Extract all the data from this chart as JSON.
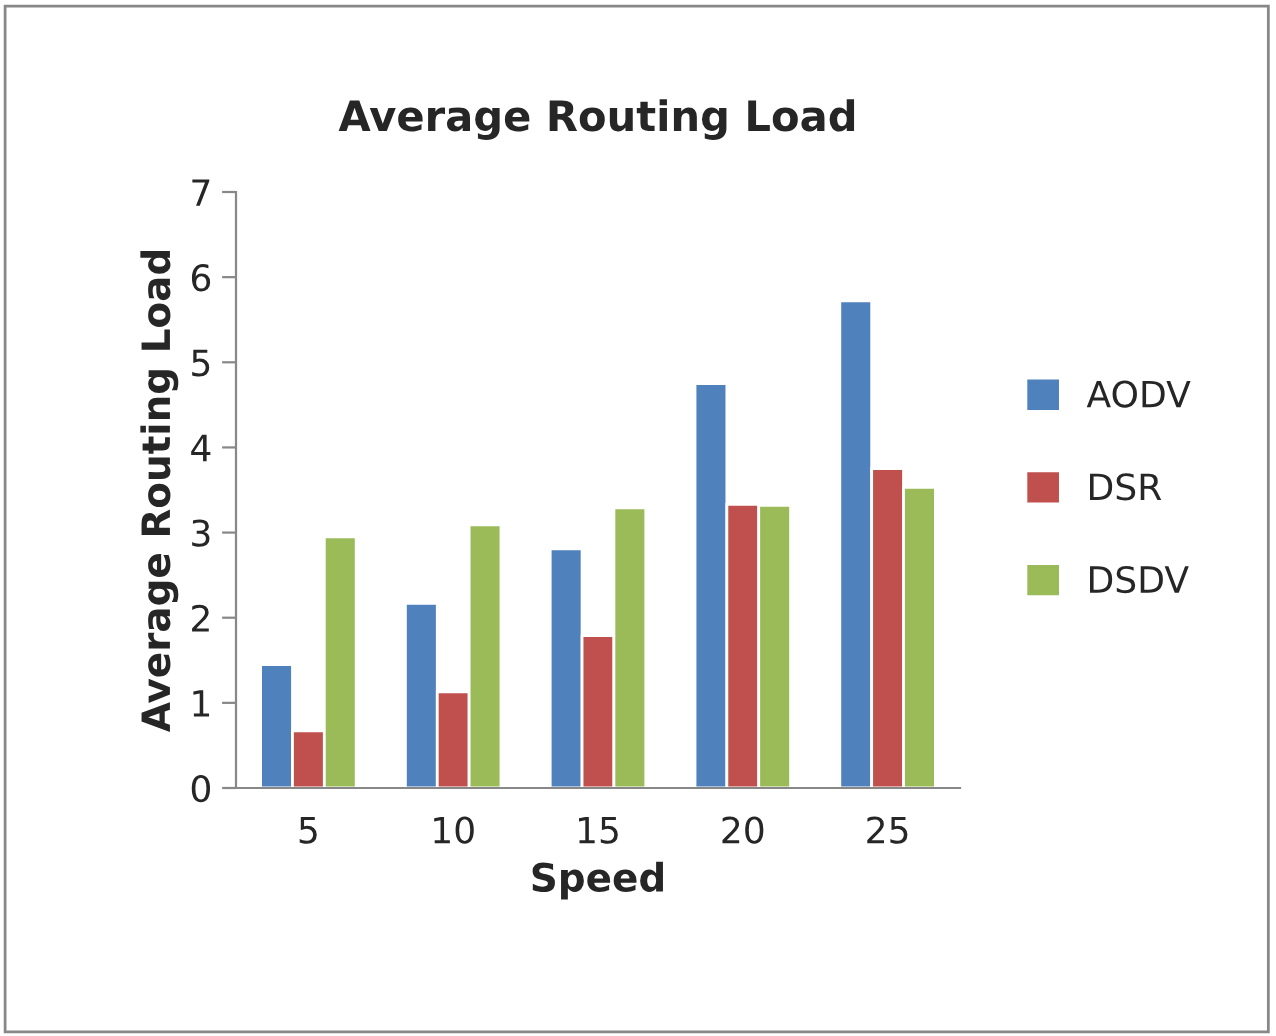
{
  "chart_data": {
    "type": "bar",
    "title": "Average Routing Load",
    "xlabel": "Speed",
    "ylabel": "Average Routing Load",
    "categories": [
      "5",
      "10",
      "15",
      "20",
      "25"
    ],
    "series": [
      {
        "name": "AODV",
        "color": "#4f81bd",
        "values": [
          1.45,
          2.17,
          2.81,
          4.75,
          5.72
        ]
      },
      {
        "name": "DSR",
        "color": "#c0504d",
        "values": [
          0.67,
          1.13,
          1.79,
          3.33,
          3.75
        ]
      },
      {
        "name": "DSDV",
        "color": "#9bbb59",
        "values": [
          2.95,
          3.09,
          3.29,
          3.32,
          3.53
        ]
      }
    ],
    "ylim": [
      0,
      7
    ],
    "yticks": [
      0,
      1,
      2,
      3,
      4,
      5,
      6,
      7
    ],
    "grid": false,
    "legend": "right"
  }
}
